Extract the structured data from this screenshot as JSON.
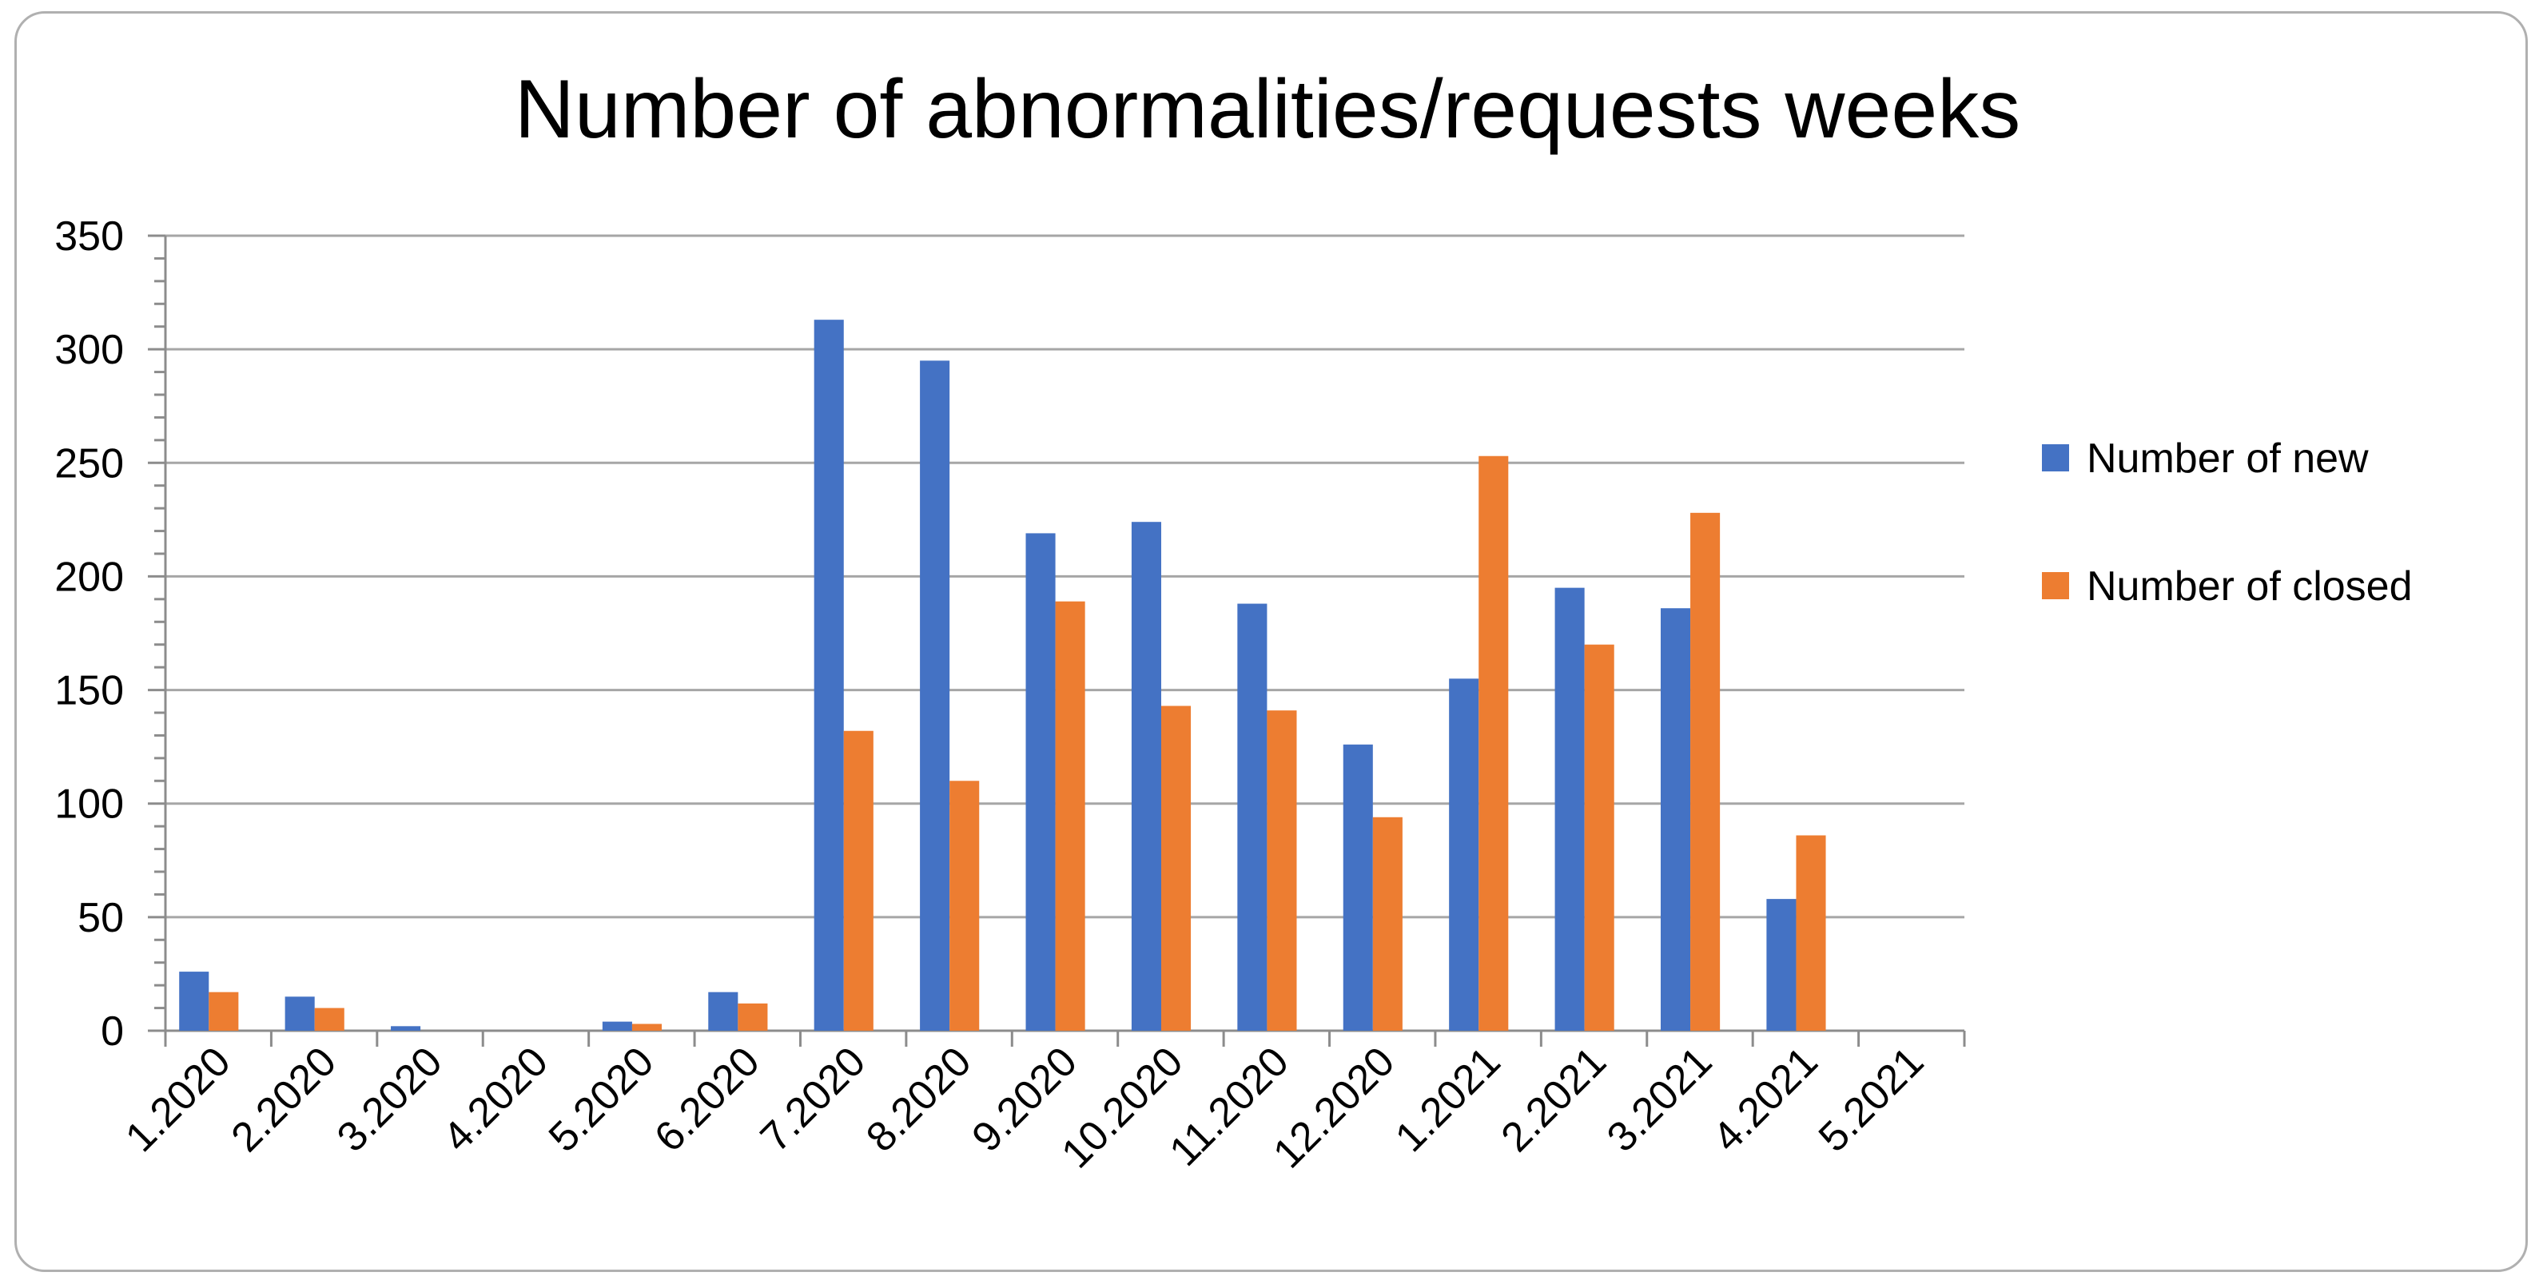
{
  "chart_data": {
    "type": "bar",
    "title": "Number of abnormalities/requests weeks",
    "xlabel": "",
    "ylabel": "",
    "ylim": [
      0,
      350
    ],
    "yticks": [
      "0",
      "50",
      "100",
      "150",
      "200",
      "250",
      "300",
      "350"
    ],
    "grid": true,
    "legend_position": "right",
    "categories": [
      "1.2020",
      "2.2020",
      "3.2020",
      "4.2020",
      "5.2020",
      "6.2020",
      "7.2020",
      "8.2020",
      "9.2020",
      "10.2020",
      "11.2020",
      "12.2020",
      "1.2021",
      "2.2021",
      "3.2021",
      "4.2021",
      "5.2021"
    ],
    "series": [
      {
        "name": "Number of new",
        "color": "#4472c4",
        "values": [
          26,
          15,
          2,
          0,
          4,
          17,
          313,
          295,
          219,
          224,
          188,
          126,
          155,
          195,
          186,
          58,
          0
        ]
      },
      {
        "name": "Number of closed",
        "color": "#ed7d31",
        "values": [
          17,
          10,
          0,
          0,
          3,
          12,
          132,
          110,
          189,
          143,
          141,
          94,
          253,
          170,
          228,
          86,
          0
        ]
      }
    ]
  }
}
